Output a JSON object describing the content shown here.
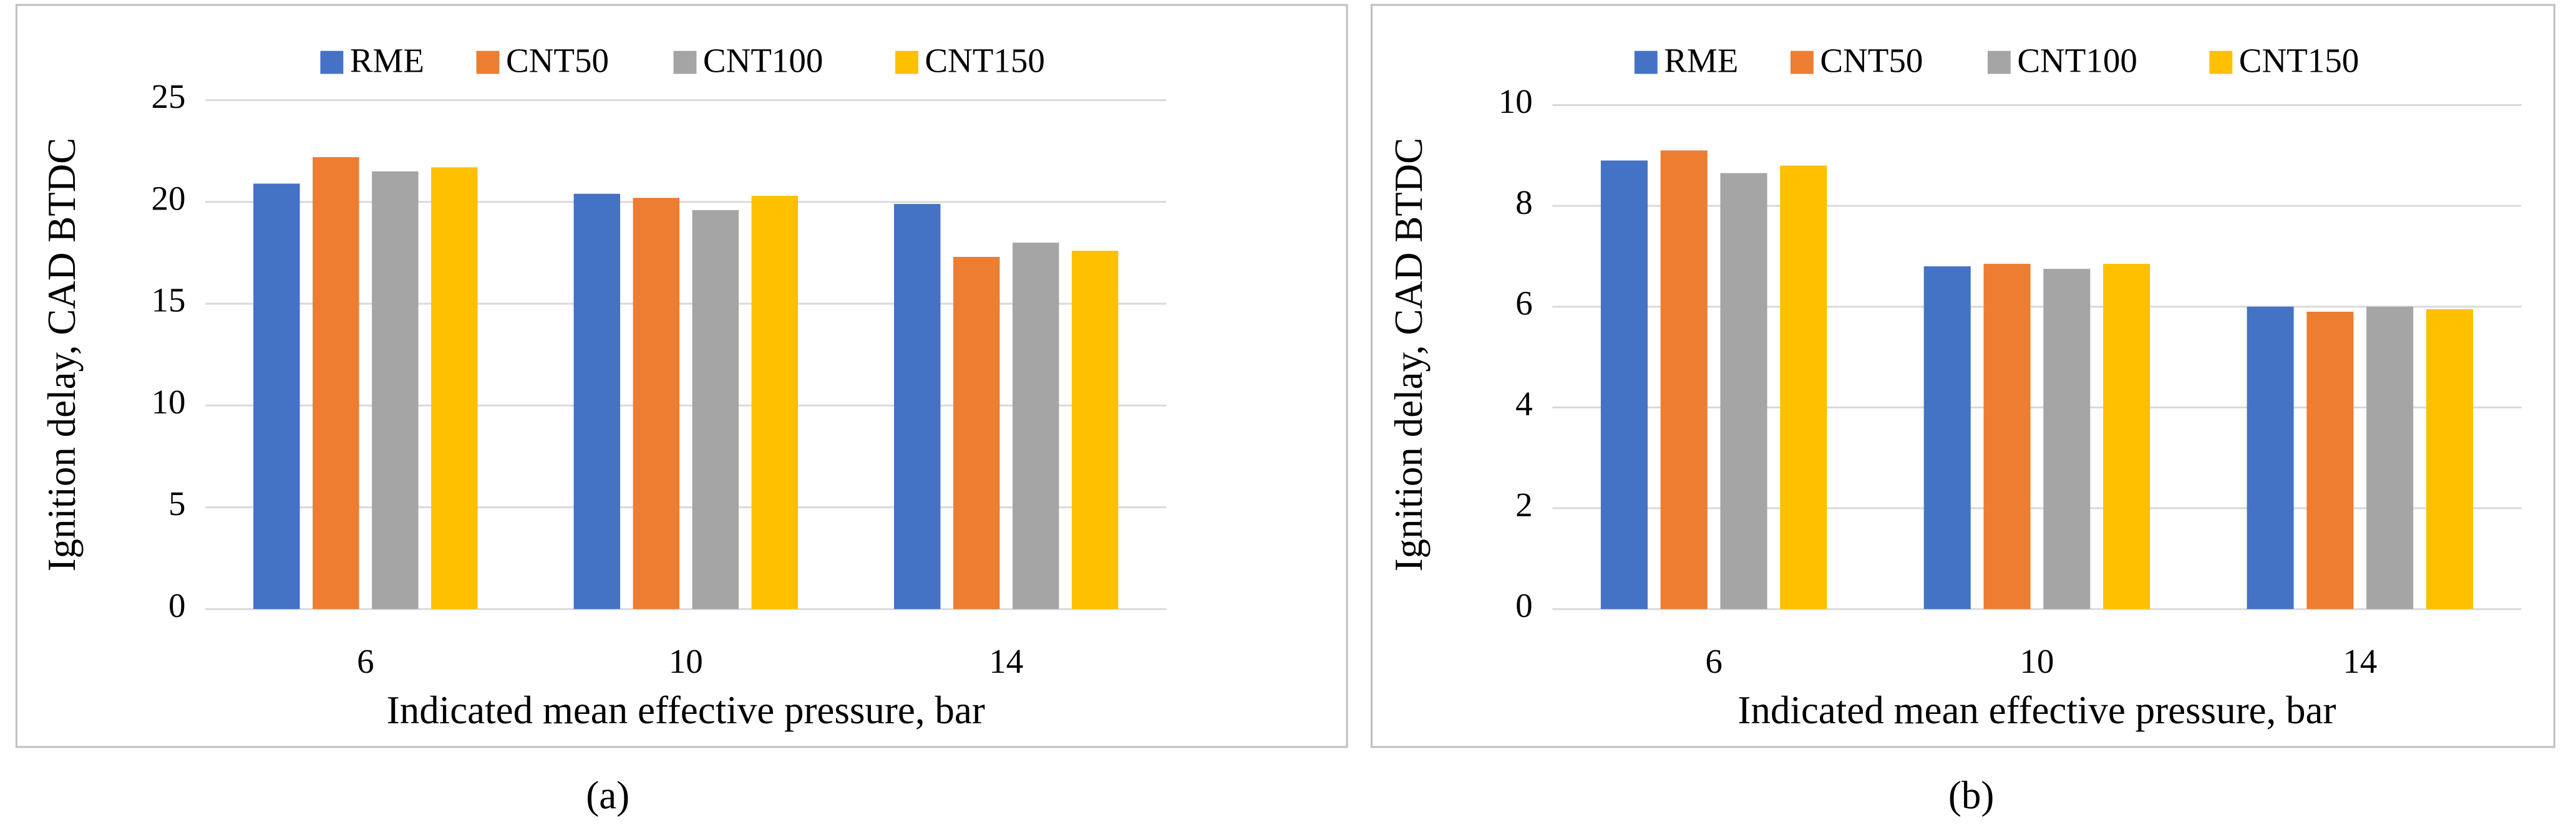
{
  "chart_data": [
    {
      "type": "bar",
      "caption": "(a)",
      "y_label": "Ignition delay, CAD BTDC",
      "x_label": "Indicated mean effective pressure, bar",
      "categories": [
        "6",
        "10",
        "14"
      ],
      "series": [
        {
          "name": "RME",
          "color": "#4472c4",
          "values": [
            20.9,
            20.4,
            19.9
          ]
        },
        {
          "name": "CNT50",
          "color": "#ed7d31",
          "values": [
            22.2,
            20.2,
            17.3
          ]
        },
        {
          "name": "CNT100",
          "color": "#a5a5a5",
          "values": [
            21.5,
            19.6,
            18.0
          ]
        },
        {
          "name": "CNT150",
          "color": "#ffc000",
          "values": [
            21.7,
            20.3,
            17.6
          ]
        }
      ],
      "ylim": [
        0,
        25
      ],
      "yticks": [
        0,
        5,
        10,
        15,
        20,
        25
      ],
      "grid": true,
      "legend": "top"
    },
    {
      "type": "bar",
      "caption": "(b)",
      "y_label": "Ignition delay, CAD BTDC",
      "x_label": "Indicated mean effective pressure, bar",
      "categories": [
        "6",
        "10",
        "14"
      ],
      "series": [
        {
          "name": "RME",
          "color": "#4472c4",
          "values": [
            8.9,
            6.8,
            6.0
          ]
        },
        {
          "name": "CNT50",
          "color": "#ed7d31",
          "values": [
            9.1,
            6.85,
            5.9
          ]
        },
        {
          "name": "CNT100",
          "color": "#a5a5a5",
          "values": [
            8.65,
            6.75,
            6.0
          ]
        },
        {
          "name": "CNT150",
          "color": "#ffc000",
          "values": [
            8.8,
            6.85,
            5.95
          ]
        }
      ],
      "ylim": [
        0,
        10
      ],
      "yticks": [
        0,
        2,
        4,
        6,
        8,
        10
      ],
      "grid": true,
      "legend": "top"
    }
  ]
}
